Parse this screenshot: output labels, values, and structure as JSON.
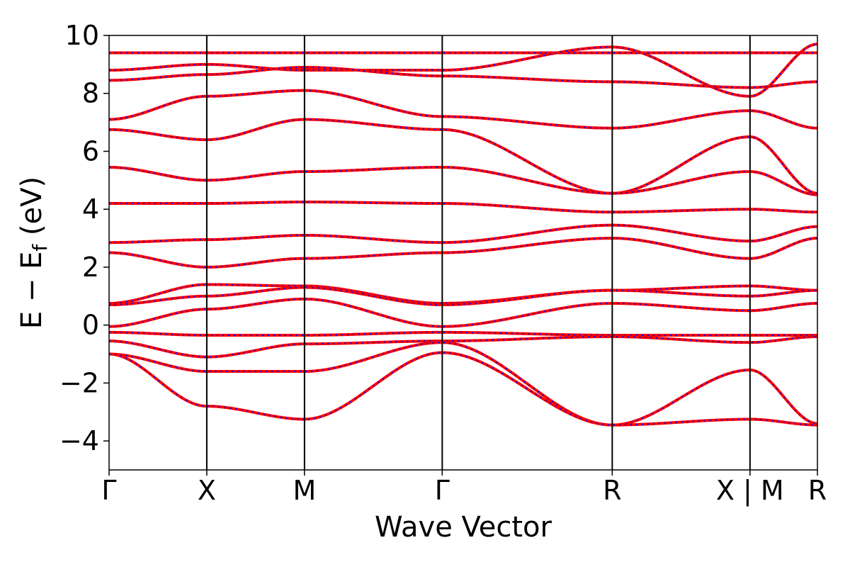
{
  "chart_data": {
    "type": "line",
    "xlabel": "Wave Vector",
    "ylabel": "E − E",
    "ylabel_sub": "f",
    "ylabel_unit": " (eV)",
    "ylim": [
      -5,
      10
    ],
    "yticks": [
      -4,
      -2,
      0,
      2,
      4,
      6,
      8,
      10
    ],
    "ytick_labels": [
      "−4",
      "−2",
      "0",
      "2",
      "4",
      "6",
      "8",
      "10"
    ],
    "xlim": [
      0,
      7.25
    ],
    "kpoints": [
      {
        "label": "Γ",
        "x": 0
      },
      {
        "label": "X",
        "x": 1.0
      },
      {
        "label": "M",
        "x": 2.0
      },
      {
        "label": "Γ",
        "x": 3.41
      },
      {
        "label": "R",
        "x": 5.15
      },
      {
        "label": "X | M",
        "x": 6.56
      },
      {
        "label": "R",
        "x": 7.25
      }
    ],
    "segment_breaks": [
      0,
      1.0,
      2.0,
      3.41,
      5.15,
      6.56,
      7.25
    ],
    "series": [
      {
        "color": "#0000ff",
        "style": "dotted"
      },
      {
        "color": "#ff0000",
        "style": "dashed"
      }
    ],
    "bands": [
      [
        9.4,
        9.4,
        9.4,
        9.4,
        9.4,
        9.4,
        9.4
      ],
      [
        8.8,
        9.0,
        8.8,
        8.8,
        9.6,
        7.9,
        9.7
      ],
      [
        8.45,
        8.65,
        8.9,
        8.6,
        8.4,
        8.2,
        8.4
      ],
      [
        7.1,
        7.9,
        8.1,
        7.2,
        6.8,
        7.4,
        6.8
      ],
      [
        6.75,
        6.4,
        7.1,
        6.75,
        4.55,
        6.5,
        4.55
      ],
      [
        5.45,
        5.0,
        5.3,
        5.45,
        4.55,
        5.3,
        4.5
      ],
      [
        4.2,
        4.2,
        4.25,
        4.2,
        3.9,
        4.0,
        3.9
      ],
      [
        2.85,
        2.95,
        3.1,
        2.85,
        3.45,
        2.9,
        3.4
      ],
      [
        2.5,
        2.0,
        2.3,
        2.5,
        3.0,
        2.3,
        3.0
      ],
      [
        0.75,
        1.4,
        1.35,
        0.75,
        1.2,
        1.35,
        1.2
      ],
      [
        0.7,
        1.0,
        1.3,
        0.7,
        1.2,
        1.0,
        1.2
      ],
      [
        -0.05,
        0.55,
        0.9,
        -0.05,
        0.75,
        0.5,
        0.75
      ],
      [
        -0.25,
        -0.35,
        -0.35,
        -0.25,
        -0.35,
        -0.35,
        -0.35
      ],
      [
        -0.55,
        -1.1,
        -0.65,
        -0.55,
        -0.4,
        -0.6,
        -0.4
      ],
      [
        -1.0,
        -1.6,
        -1.6,
        -0.6,
        -3.45,
        -1.55,
        -3.4
      ],
      [
        -1.0,
        -2.8,
        -3.25,
        -0.95,
        -3.45,
        -3.25,
        -3.45
      ]
    ]
  }
}
